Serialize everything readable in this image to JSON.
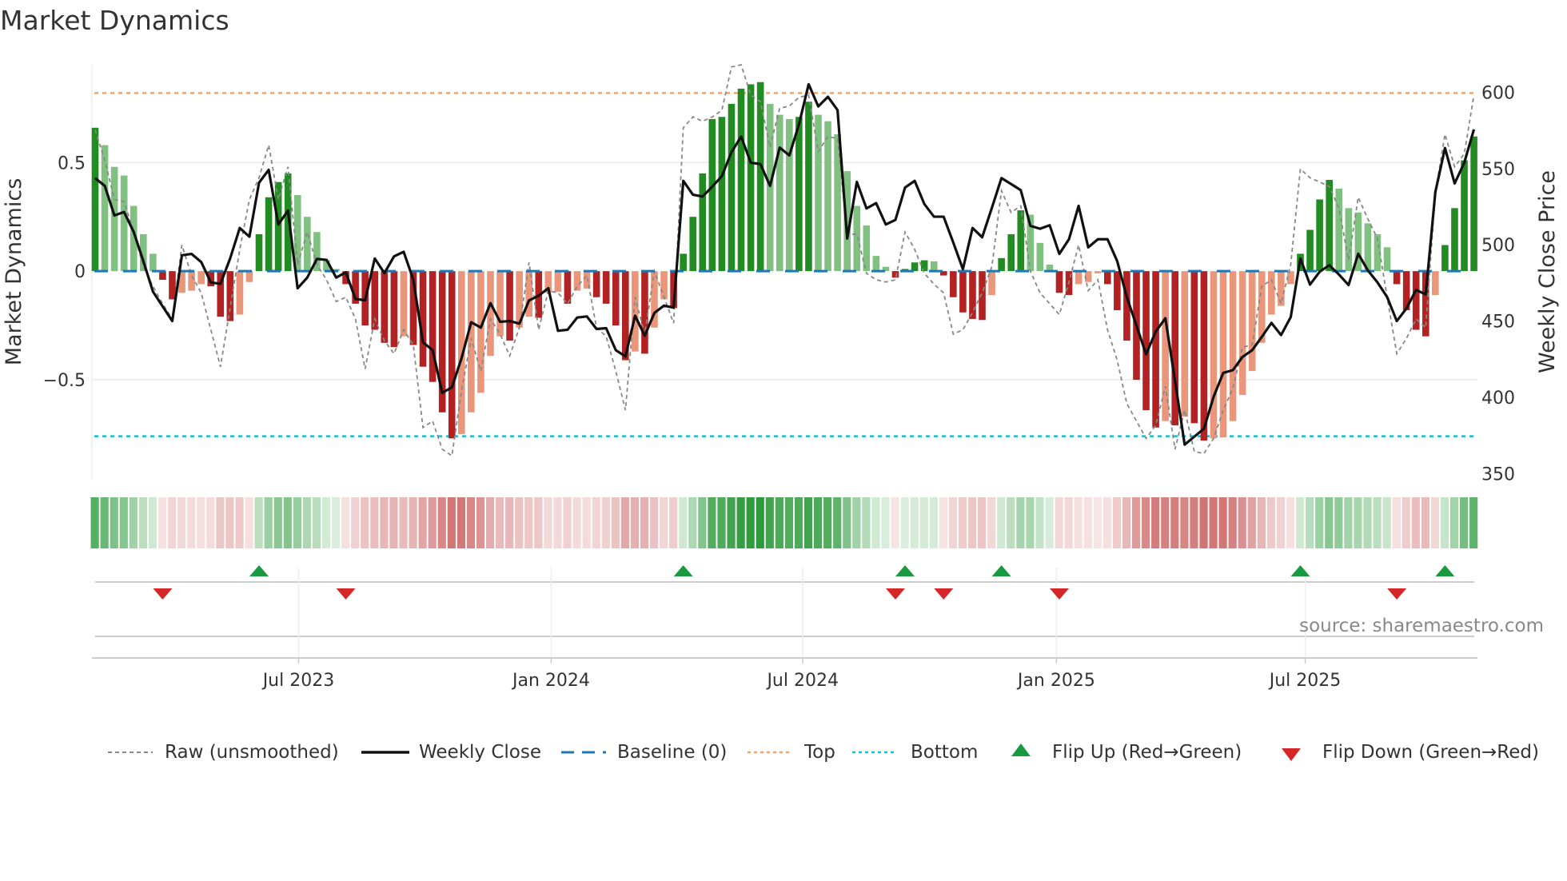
{
  "title": "Market Dynamics",
  "source": "source: sharemaestro.com",
  "chart_data": {
    "type": "bar",
    "title": "Market Dynamics",
    "ylabel": "Market Dynamics",
    "y2label": "Weekly Close Price",
    "x_start": "2023-02-05",
    "x_frequency": "weekly",
    "ylim": [
      -0.96,
      0.95
    ],
    "y2lim": [
      346,
      618
    ],
    "yticks": [
      {
        "v": 0.5,
        "label": "0.5"
      },
      {
        "v": 0,
        "label": "0"
      },
      {
        "v": -0.5,
        "label": "−0.5"
      }
    ],
    "y2ticks": [
      {
        "v": 600,
        "label": "600"
      },
      {
        "v": 550,
        "label": "550"
      },
      {
        "v": 500,
        "label": "500"
      },
      {
        "v": 450,
        "label": "450"
      },
      {
        "v": 400,
        "label": "400"
      },
      {
        "v": 350,
        "label": "350"
      }
    ],
    "xticks": [
      {
        "idx": 21.1,
        "label": "Jul 2023"
      },
      {
        "idx": 47.3,
        "label": "Jan 2024"
      },
      {
        "idx": 73.4,
        "label": "Jul 2024"
      },
      {
        "idx": 99.7,
        "label": "Jan 2025"
      },
      {
        "idx": 125.5,
        "label": "Jul 2025"
      }
    ],
    "top_level": 0.82,
    "bottom_level": -0.76,
    "baseline": 0,
    "colors": {
      "green_strong": "#228b22",
      "green_weak": "#80c080",
      "red_strong": "#b22222",
      "red_weak": "#e9967a",
      "baseline": "#1f77b4",
      "top": "#f4a460",
      "bottom": "#17becf",
      "raw": "#888888",
      "close": "#111111",
      "flip_up": "#1a9a40",
      "flip_down": "#d62728"
    },
    "dynamics": [
      0.66,
      0.58,
      0.48,
      0.44,
      0.3,
      0.17,
      0.08,
      -0.04,
      -0.13,
      -0.1,
      -0.09,
      -0.06,
      -0.07,
      -0.21,
      -0.23,
      -0.2,
      -0.05,
      0.17,
      0.34,
      0.41,
      0.45,
      0.35,
      0.25,
      0.18,
      0.05,
      0.01,
      -0.06,
      -0.15,
      -0.25,
      -0.27,
      -0.33,
      -0.35,
      -0.3,
      -0.34,
      -0.44,
      -0.51,
      -0.65,
      -0.77,
      -0.75,
      -0.65,
      -0.56,
      -0.39,
      -0.3,
      -0.32,
      -0.26,
      -0.21,
      -0.215,
      -0.1,
      -0.095,
      -0.15,
      -0.09,
      -0.08,
      -0.12,
      -0.15,
      -0.25,
      -0.41,
      -0.37,
      -0.38,
      -0.26,
      -0.13,
      -0.17,
      0.08,
      0.25,
      0.45,
      0.7,
      0.71,
      0.77,
      0.84,
      0.86,
      0.87,
      0.77,
      0.72,
      0.7,
      0.71,
      0.78,
      0.72,
      0.69,
      0.63,
      0.46,
      0.3,
      0.21,
      0.07,
      0.02,
      -0.03,
      0.01,
      0.04,
      0.05,
      0.045,
      -0.02,
      -0.12,
      -0.19,
      -0.22,
      -0.225,
      -0.11,
      0.06,
      0.17,
      0.28,
      0.26,
      0.13,
      0.03,
      -0.1,
      -0.11,
      -0.06,
      -0.05,
      -0.01,
      -0.06,
      -0.18,
      -0.32,
      -0.5,
      -0.64,
      -0.72,
      -0.69,
      -0.71,
      -0.67,
      -0.7,
      -0.78,
      -0.77,
      -0.765,
      -0.69,
      -0.57,
      -0.46,
      -0.33,
      -0.2,
      -0.16,
      -0.06,
      0.08,
      0.19,
      0.33,
      0.42,
      0.38,
      0.29,
      0.27,
      0.22,
      0.17,
      0.11,
      -0.06,
      -0.18,
      -0.27,
      -0.3,
      -0.11,
      0.12,
      0.29,
      0.51,
      0.62
    ],
    "raw": [
      0.65,
      0.51,
      0.33,
      0.32,
      0.18,
      0.02,
      -0.07,
      -0.15,
      -0.22,
      0.12,
      -0.02,
      -0.1,
      -0.27,
      -0.44,
      -0.17,
      0.1,
      0.33,
      0.43,
      0.58,
      0.33,
      0.48,
      0.03,
      0.18,
      0.03,
      -0.04,
      -0.14,
      -0.12,
      -0.22,
      -0.45,
      -0.22,
      -0.32,
      -0.38,
      -0.27,
      -0.34,
      -0.72,
      -0.69,
      -0.82,
      -0.85,
      -0.55,
      -0.31,
      -0.46,
      -0.22,
      -0.29,
      -0.39,
      -0.26,
      0.04,
      -0.27,
      -0.09,
      -0.1,
      -0.15,
      -0.07,
      -0.02,
      -0.26,
      -0.3,
      -0.46,
      -0.64,
      -0.12,
      -0.29,
      0.0,
      -0.12,
      -0.24,
      0.66,
      0.71,
      0.69,
      0.71,
      0.74,
      0.94,
      0.95,
      0.81,
      0.78,
      0.57,
      0.75,
      0.76,
      0.8,
      0.81,
      0.55,
      0.62,
      0.61,
      0.17,
      0.17,
      -0.01,
      -0.04,
      -0.05,
      -0.04,
      0.18,
      0.1,
      -0.01,
      -0.06,
      -0.1,
      -0.29,
      -0.27,
      -0.19,
      -0.1,
      0.02,
      0.37,
      0.27,
      0.3,
      0.0,
      -0.1,
      -0.15,
      -0.2,
      -0.05,
      0.12,
      -0.09,
      -0.04,
      -0.27,
      -0.41,
      -0.61,
      -0.69,
      -0.77,
      -0.71,
      -0.53,
      -0.82,
      -0.64,
      -0.83,
      -0.84,
      -0.77,
      -0.64,
      -0.54,
      -0.35,
      -0.34,
      -0.07,
      -0.04,
      -0.15,
      0.03,
      0.47,
      0.43,
      0.41,
      0.39,
      0.29,
      0.05,
      0.34,
      0.24,
      0.15,
      -0.12,
      -0.38,
      -0.31,
      -0.22,
      -0.26,
      0.36,
      0.63,
      0.48,
      0.54,
      0.81
    ],
    "close": [
      543.7,
      538.6,
      519.2,
      521.5,
      508.4,
      489.3,
      469.2,
      459.6,
      450.0,
      493.1,
      494.0,
      488.7,
      475.3,
      474.4,
      491.0,
      511.0,
      505.3,
      540.7,
      549.1,
      513.3,
      522.4,
      471.5,
      478.5,
      490.7,
      490.1,
      478.5,
      481.9,
      464.5,
      463.6,
      491.0,
      481.4,
      492.4,
      495.4,
      477.1,
      436.1,
      430.9,
      403.0,
      406.5,
      425.6,
      449.2,
      445.7,
      461.7,
      449.5,
      450.0,
      448.3,
      463.5,
      466.6,
      471.5,
      443.6,
      444.3,
      452.3,
      453.0,
      444.8,
      445.3,
      430.9,
      426.8,
      453.5,
      440.4,
      455.3,
      460.1,
      458.8,
      541.9,
      532.8,
      531.6,
      538.1,
      545.0,
      560.7,
      570.9,
      553.8,
      552.9,
      538.6,
      563.7,
      558.6,
      579.0,
      605.2,
      590.7,
      597.0,
      588.3,
      504.1,
      541.2,
      523.8,
      527.3,
      513.3,
      516.3,
      537.5,
      541.9,
      526.7,
      518.4,
      518.4,
      501.5,
      484.0,
      511.0,
      504.9,
      524.1,
      543.7,
      539.8,
      535.8,
      512.4,
      510.5,
      512.8,
      494.0,
      503.6,
      525.5,
      498.3,
      503.6,
      503.6,
      489.3,
      465.7,
      447.0,
      428.2,
      443.1,
      451.8,
      410.8,
      369.0,
      374.2,
      379.4,
      400.3,
      416.0,
      417.8,
      426.5,
      430.9,
      439.6,
      448.8,
      440.8,
      452.6,
      491.0,
      473.9,
      482.3,
      486.6,
      480.5,
      473.6,
      494.1,
      483.2,
      475.3,
      465.7,
      450.0,
      458.2,
      470.4,
      467.5,
      534.6,
      563.4,
      540.2,
      553.8,
      575.6
    ],
    "flip_up_indices": [
      17,
      61,
      84,
      94,
      125,
      140
    ],
    "flip_down_indices": [
      7,
      26,
      83,
      88,
      100,
      135
    ],
    "legend": {
      "raw": "Raw (unsmoothed)",
      "close": "Weekly Close",
      "baseline": "Baseline (0)",
      "top": "Top",
      "bottom": "Bottom",
      "flip_up": "Flip Up (Red→Green)",
      "flip_down": "Flip Down (Green→Red)"
    },
    "legend_position": "bottom"
  }
}
